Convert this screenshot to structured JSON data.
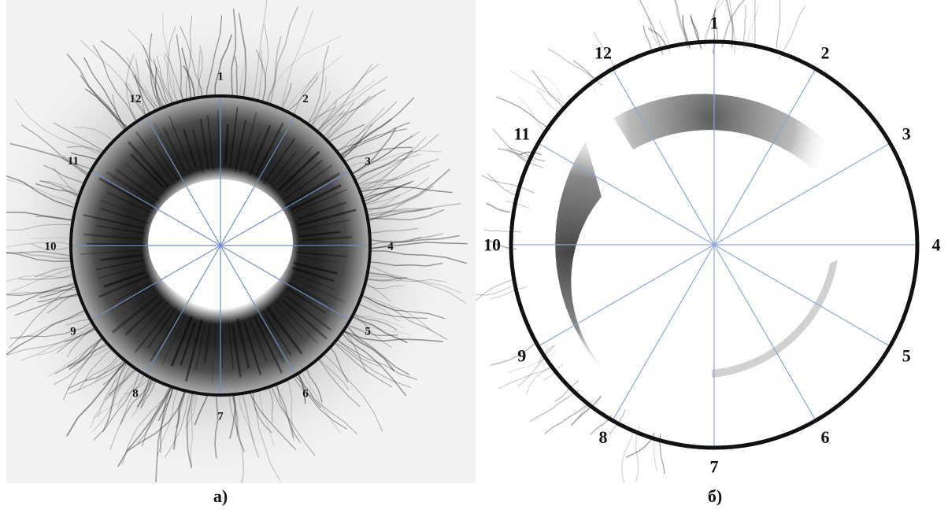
{
  "panels": [
    {
      "id": "a",
      "caption": "а)",
      "sector_labels": [
        "1",
        "2",
        "3",
        "4",
        "5",
        "6",
        "7",
        "8",
        "9",
        "10",
        "11",
        "12"
      ],
      "colors": {
        "background": "#f2f2f2",
        "ring": "#111111",
        "spokes": "#6f8fc9",
        "glow": "#1c1c1c"
      }
    },
    {
      "id": "b",
      "caption": "б)",
      "sector_labels": [
        "1",
        "2",
        "3",
        "4",
        "5",
        "6",
        "7",
        "8",
        "9",
        "10",
        "11",
        "12"
      ],
      "colors": {
        "background": "#ffffff",
        "ring": "#111111",
        "spokes": "#8aa6d6",
        "glow": "#3a3a3a"
      }
    }
  ]
}
